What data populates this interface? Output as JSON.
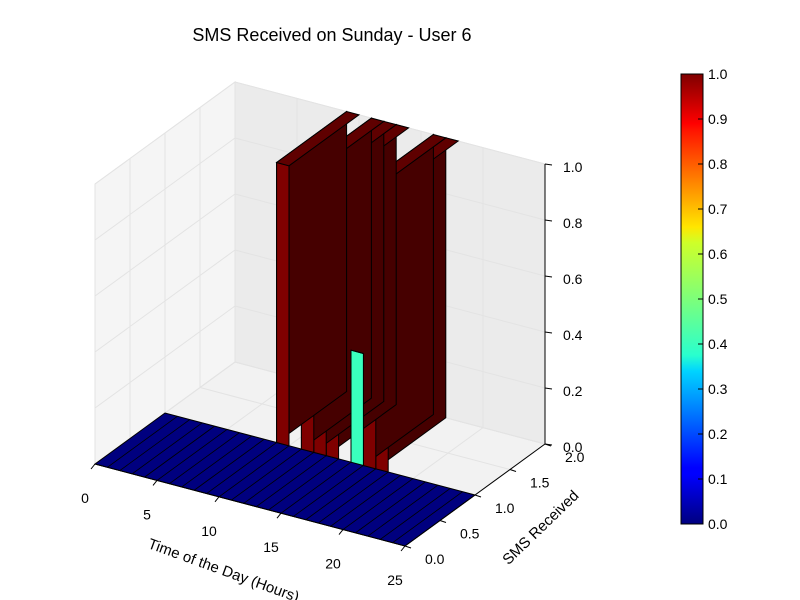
{
  "chart_data": {
    "type": "bar3d",
    "title": "SMS Received on Sunday - User 6",
    "xlabel": "Time of the Day (Hours)",
    "ylabel": "SMS Received",
    "zlabel": "",
    "xticks": [
      "0",
      "5",
      "10",
      "15",
      "20",
      "25"
    ],
    "yticks": [
      "0.0",
      "0.5",
      "1.0",
      "1.5",
      "2.0"
    ],
    "zticks": [
      "0.0",
      "0.2",
      "0.4",
      "0.6",
      "0.8",
      "1.0"
    ],
    "xlim": [
      0,
      25
    ],
    "ylim": [
      0,
      2
    ],
    "zlim": [
      0,
      1
    ],
    "colormap": "jet",
    "colorbar": {
      "ticks": [
        "0.0",
        "0.1",
        "0.2",
        "0.3",
        "0.4",
        "0.5",
        "0.6",
        "0.7",
        "0.8",
        "0.9",
        "1.0"
      ],
      "range": [
        0,
        1
      ]
    },
    "bars": [
      {
        "hour": 9,
        "count": 2,
        "value": 1.0
      },
      {
        "hour": 11,
        "count": 2,
        "value": 1.0
      },
      {
        "hour": 12,
        "count": 2,
        "value": 1.0
      },
      {
        "hour": 13,
        "count": 2,
        "value": 1.0
      },
      {
        "hour": 15,
        "count": 1,
        "value": 0.4
      },
      {
        "hour": 16,
        "count": 2,
        "value": 1.0
      },
      {
        "hour": 17,
        "count": 2,
        "value": 1.0
      }
    ],
    "floor_color": "#00007f",
    "grid": true
  }
}
